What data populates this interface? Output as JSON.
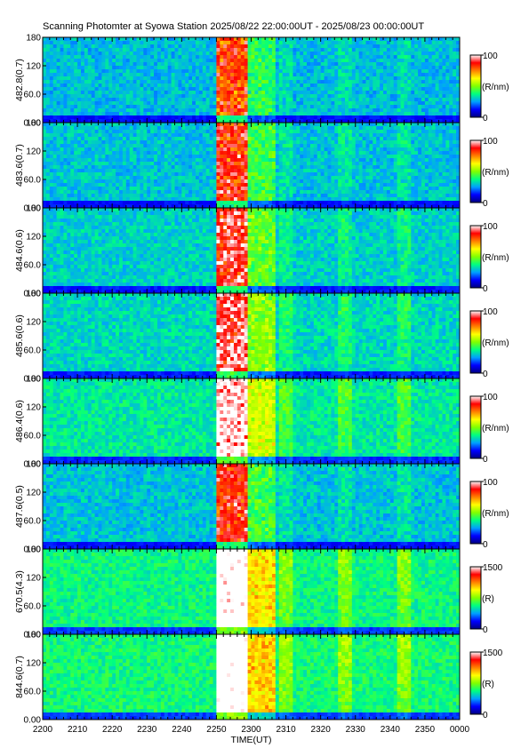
{
  "chart_data": {
    "type": "heatmap",
    "title": "Scanning Photomter at Syowa Station 2025/08/22 22:00:00UT - 2025/08/23 00:00:00UT",
    "xlabel": "TIME(UT)",
    "x_ticks": [
      "2200",
      "2210",
      "2220",
      "2230",
      "2240",
      "2250",
      "2300",
      "2310",
      "2320",
      "2330",
      "2340",
      "2350",
      "0000"
    ],
    "y_ticks": [
      "0.00",
      "60.0",
      "120",
      "180"
    ],
    "ylim": [
      0,
      180
    ],
    "colormap": [
      "#000080",
      "#0000ff",
      "#00a0ff",
      "#00ff80",
      "#80ff00",
      "#ffff00",
      "#ff8000",
      "#ff0000",
      "#ffffff"
    ],
    "panels": [
      {
        "ylabel": "482.8(0.7)",
        "cb_max": "100",
        "cb_min": "0",
        "cb_unit": "(R/nm)",
        "intensity": 0.25
      },
      {
        "ylabel": "483.6(0.7)",
        "cb_max": "100",
        "cb_min": "0",
        "cb_unit": "(R/nm)",
        "intensity": 0.3
      },
      {
        "ylabel": "484.6(0.6)",
        "cb_max": "100",
        "cb_min": "0",
        "cb_unit": "(R/nm)",
        "intensity": 0.38
      },
      {
        "ylabel": "485.6(0.6)",
        "cb_max": "100",
        "cb_min": "0",
        "cb_unit": "(R/nm)",
        "intensity": 0.45
      },
      {
        "ylabel": "486.4(0.6)",
        "cb_max": "100",
        "cb_min": "0",
        "cb_unit": "(R/nm)",
        "intensity": 0.6
      },
      {
        "ylabel": "487.6(0.5)",
        "cb_max": "100",
        "cb_min": "0",
        "cb_unit": "(R/nm)",
        "intensity": 0.3
      },
      {
        "ylabel": "670.5(4.3)",
        "cb_max": "1500",
        "cb_min": "0",
        "cb_unit": "(R)",
        "intensity": 0.75
      },
      {
        "ylabel": "844.6(0.7)",
        "cb_max": "1500",
        "cb_min": "0",
        "cb_unit": "(R)",
        "intensity": 0.8
      }
    ]
  }
}
